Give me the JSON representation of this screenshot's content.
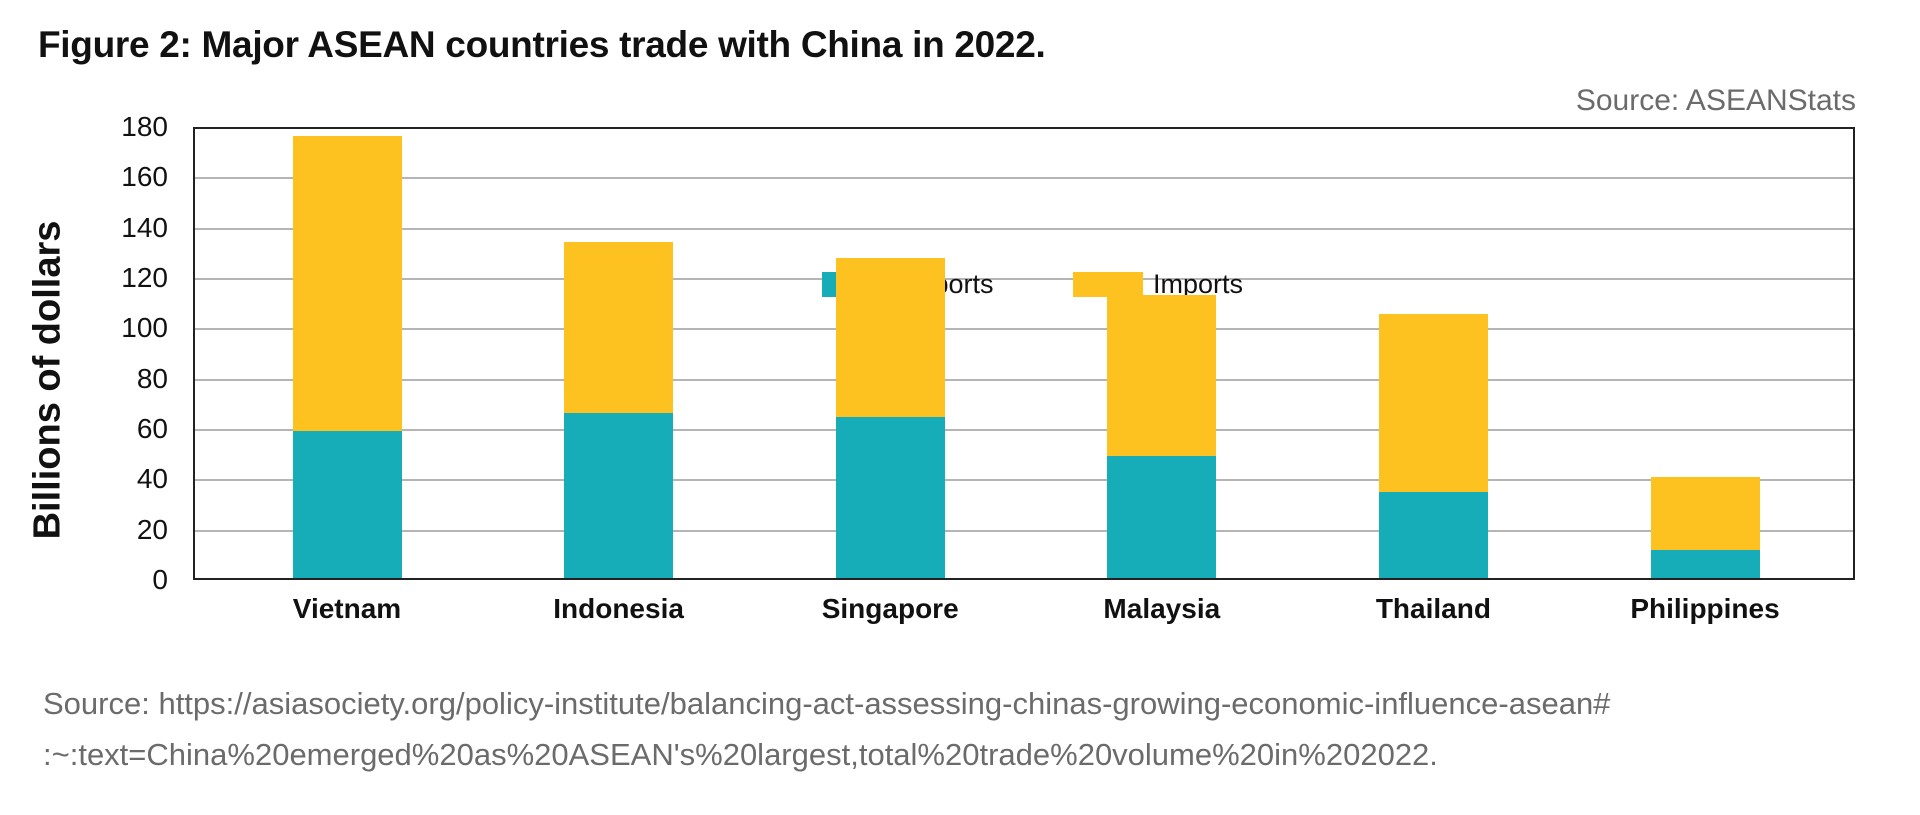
{
  "title": "Figure 2: Major ASEAN countries trade with China in 2022.",
  "source_top": "Source: ASEANStats",
  "source_bottom_line1": "Source: https://asiasociety.org/policy-institute/balancing-act-assessing-chinas-growing-economic-influence-asean#",
  "source_bottom_line2": ":~:text=China%20emerged%20as%20ASEAN's%20largest,total%20trade%20volume%20in%202022.",
  "colors": {
    "exports": "#16adb9",
    "imports": "#fdc21f"
  },
  "chart_data": {
    "type": "bar",
    "stacked": true,
    "title": "Figure 2: Major ASEAN countries trade with China in 2022.",
    "xlabel": "",
    "ylabel": "Billions of dollars",
    "ylim": [
      0,
      180
    ],
    "yticks": [
      0,
      20,
      40,
      60,
      80,
      100,
      120,
      140,
      160,
      180
    ],
    "grid": true,
    "legend_position": "top-center-inside",
    "categories": [
      "Vietnam",
      "Indonesia",
      "Singapore",
      "Malaysia",
      "Thailand",
      "Philippines"
    ],
    "series": [
      {
        "name": "Exports",
        "values": [
          58.5,
          65.5,
          64,
          48.5,
          34,
          11
        ]
      },
      {
        "name": "Imports",
        "values": [
          117,
          68,
          63,
          64,
          71,
          29
        ]
      }
    ],
    "totals": [
      175.5,
      133.5,
      127,
      112.5,
      105,
      40
    ]
  }
}
